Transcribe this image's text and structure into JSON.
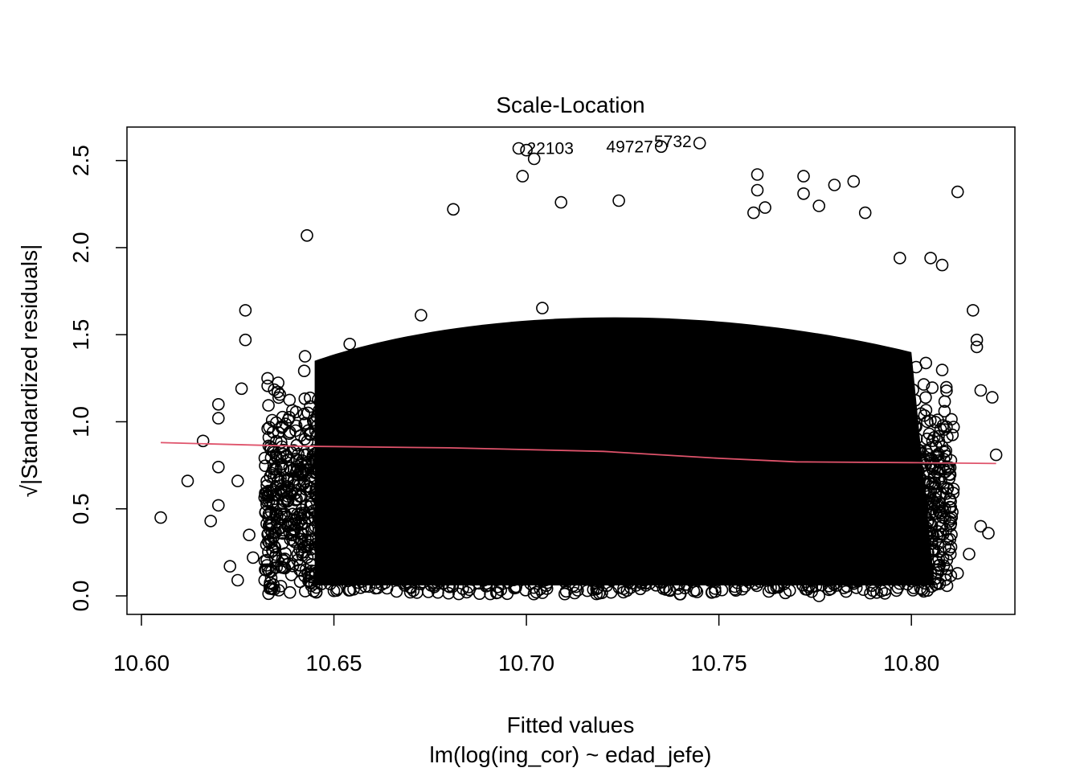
{
  "chart_data": {
    "type": "scatter",
    "title": "Scale-Location",
    "xlabel": "Fitted values",
    "sublabel": "lm(log(ing_cor) ~ edad_jefe)",
    "ylabel": "√|Standardized residuals|",
    "xlim": [
      10.6,
      10.82
    ],
    "ylim": [
      0,
      2.6
    ],
    "x_ticks": [
      10.6,
      10.65,
      10.7,
      10.75,
      10.8
    ],
    "x_tick_labels": [
      "10.60",
      "10.65",
      "10.70",
      "10.75",
      "10.80"
    ],
    "y_ticks": [
      0.0,
      0.5,
      1.0,
      1.5,
      2.0,
      2.5
    ],
    "y_tick_labels": [
      "0.0",
      "0.5",
      "1.0",
      "1.5",
      "2.0",
      "2.5"
    ],
    "grid": false,
    "point_colour": "#000000",
    "smooth_colour": "#df536b",
    "points": [
      [
        10.605,
        0.45
      ],
      [
        10.612,
        0.66
      ],
      [
        10.616,
        0.89
      ],
      [
        10.618,
        0.43
      ],
      [
        10.62,
        0.74
      ],
      [
        10.62,
        1.02
      ],
      [
        10.62,
        1.1
      ],
      [
        10.62,
        0.52
      ],
      [
        10.623,
        0.17
      ],
      [
        10.625,
        0.09
      ],
      [
        10.625,
        0.66
      ],
      [
        10.626,
        1.19
      ],
      [
        10.627,
        1.64
      ],
      [
        10.627,
        1.47
      ],
      [
        10.628,
        0.35
      ],
      [
        10.629,
        0.22
      ],
      [
        10.632,
        0.09
      ],
      [
        10.634,
        0.04
      ],
      [
        10.634,
        0.26
      ],
      [
        10.643,
        2.07
      ],
      [
        10.698,
        2.57
      ],
      [
        10.7,
        2.56
      ],
      [
        10.702,
        2.51
      ],
      [
        10.699,
        2.41
      ],
      [
        10.735,
        2.58
      ],
      [
        10.745,
        2.6
      ],
      [
        10.709,
        2.26
      ],
      [
        10.724,
        2.27
      ],
      [
        10.76,
        2.42
      ],
      [
        10.76,
        2.33
      ],
      [
        10.772,
        2.41
      ],
      [
        10.772,
        2.31
      ],
      [
        10.78,
        2.36
      ],
      [
        10.785,
        2.38
      ],
      [
        10.788,
        2.2
      ],
      [
        10.776,
        2.24
      ],
      [
        10.812,
        2.32
      ],
      [
        10.681,
        2.22
      ],
      [
        10.759,
        2.2
      ],
      [
        10.762,
        2.23
      ],
      [
        10.797,
        1.94
      ],
      [
        10.805,
        1.94
      ],
      [
        10.808,
        1.9
      ],
      [
        10.816,
        1.64
      ],
      [
        10.817,
        1.47
      ],
      [
        10.817,
        1.43
      ],
      [
        10.818,
        1.18
      ],
      [
        10.818,
        0.4
      ],
      [
        10.82,
        0.36
      ],
      [
        10.821,
        1.14
      ],
      [
        10.822,
        0.81
      ],
      [
        10.812,
        0.13
      ],
      [
        10.815,
        0.24
      ],
      [
        10.677,
        0.02
      ],
      [
        10.722,
        0.02
      ],
      [
        10.74,
        0.01
      ],
      [
        10.776,
        0.0
      ],
      [
        10.79,
        0.03
      ],
      [
        10.73,
        0.08
      ]
    ],
    "labeled_points": [
      {
        "id": "22103",
        "x": 10.698,
        "y": 2.57
      },
      {
        "id": "49727",
        "x": 10.735,
        "y": 2.58
      },
      {
        "id": "5732",
        "x": 10.745,
        "y": 2.6
      }
    ],
    "smooth_line": [
      [
        10.605,
        0.88
      ],
      [
        10.64,
        0.86
      ],
      [
        10.68,
        0.85
      ],
      [
        10.72,
        0.83
      ],
      [
        10.75,
        0.79
      ],
      [
        10.77,
        0.77
      ],
      [
        10.8,
        0.765
      ],
      [
        10.822,
        0.76
      ]
    ]
  }
}
